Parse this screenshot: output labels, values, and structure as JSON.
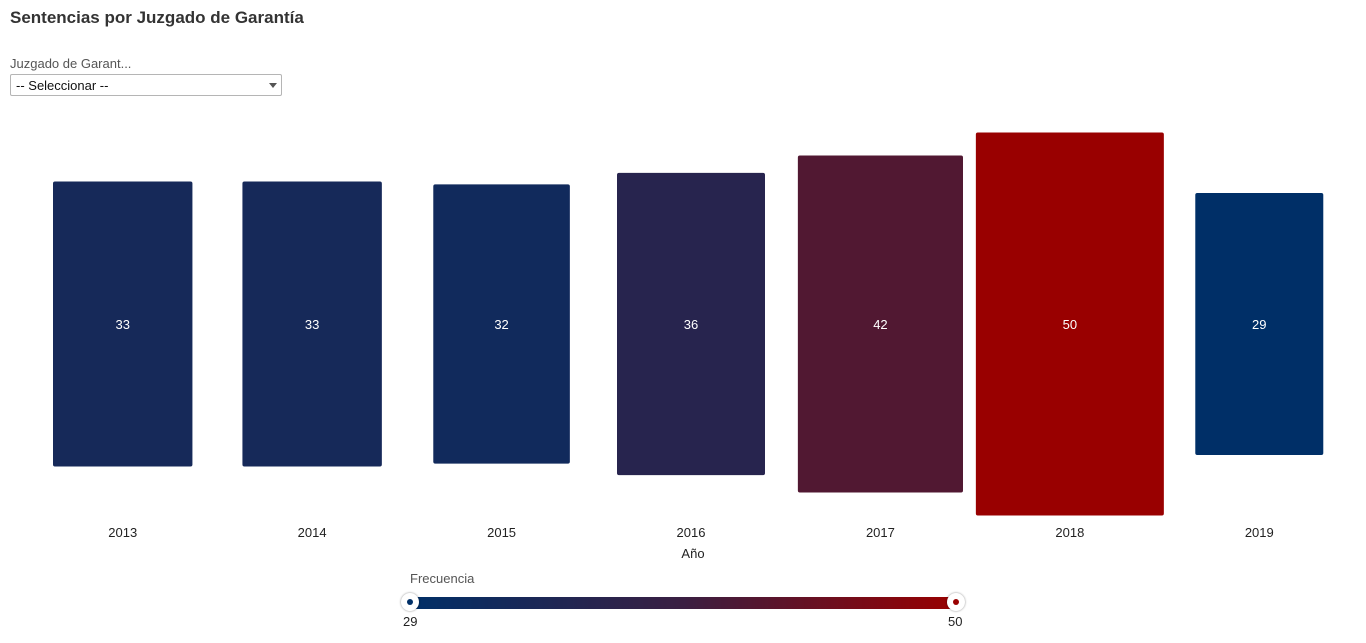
{
  "page": {
    "title": "Sentencias por Juzgado de Garantía",
    "filter": {
      "label": "Juzgado de Garant...",
      "selected": "-- Seleccionar --"
    }
  },
  "colors": {
    "low": "#002f67",
    "mid": "#3a1f42",
    "high": "#990000"
  },
  "chart_data": {
    "type": "bar",
    "categories": [
      "2013",
      "2014",
      "2015",
      "2016",
      "2017",
      "2018",
      "2019"
    ],
    "values": [
      33,
      33,
      32,
      36,
      42,
      50,
      29
    ],
    "xlabel": "Año",
    "encoding": "bar width and height scale with value; color scale by value",
    "legend": {
      "title": "Frecuencia",
      "min": 29,
      "max": 50,
      "placement": "bottom-center"
    }
  }
}
